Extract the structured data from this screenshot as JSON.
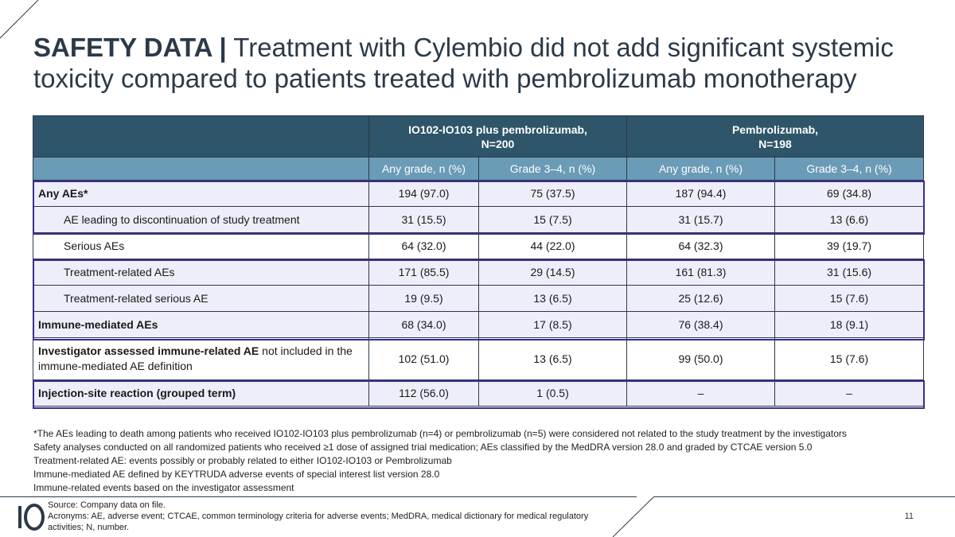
{
  "title": {
    "bold": "SAFETY DATA |",
    "rest": "Treatment with Cylembio did not add significant systemic toxicity compared to patients treated with pembrolizumab monotherapy"
  },
  "table": {
    "group_headers": [
      {
        "line1": "IO102-IO103 plus pembrolizumab,",
        "line2": "N=200"
      },
      {
        "line1": "Pembrolizumab,",
        "line2": "N=198"
      }
    ],
    "sub_headers": [
      "Any grade, n (%)",
      "Grade 3–4, n (%)",
      "Any grade, n (%)",
      "Grade 3–4, n (%)"
    ],
    "rows": [
      {
        "label": "Any AEs*",
        "values": [
          "194 (97.0)",
          "75 (37.5)",
          "187 (94.4)",
          "69 (34.8)"
        ]
      },
      {
        "label": "AE leading to discontinuation of study treatment",
        "values": [
          "31 (15.5)",
          "15 (7.5)",
          "31 (15.7)",
          "13 (6.6)"
        ]
      },
      {
        "label": "Serious AEs",
        "values": [
          "64 (32.0)",
          "44 (22.0)",
          "64 (32.3)",
          "39 (19.7)"
        ]
      },
      {
        "label": "Treatment-related AEs",
        "values": [
          "171 (85.5)",
          "29 (14.5)",
          "161 (81.3)",
          "31 (15.6)"
        ]
      },
      {
        "label": "Treatment-related serious AE",
        "values": [
          "19 (9.5)",
          "13 (6.5)",
          "25 (12.6)",
          "15 (7.6)"
        ]
      },
      {
        "label": "Immune-mediated AEs",
        "values": [
          "68 (34.0)",
          "17 (8.5)",
          "76 (38.4)",
          "18 (9.1)"
        ]
      },
      {
        "label_bold": "Investigator assessed immune-related AE",
        "label_rest": " not included in the immune-mediated AE definition",
        "values": [
          "102 (51.0)",
          "13 (6.5)",
          "99 (50.0)",
          "15 (7.6)"
        ]
      },
      {
        "label": "Injection-site reaction (grouped term)",
        "values": [
          "112 (56.0)",
          "1 (0.5)",
          "–",
          "–"
        ]
      }
    ]
  },
  "footnotes": [
    "*The AEs leading to death among patients who received IO102-IO103 plus pembrolizumab (n=4) or pembrolizumab (n=5) were considered not related to the study treatment by the investigators",
    "Safety analyses conducted on all randomized patients who received ≥1 dose of assigned trial medication; AEs classified by the MedDRA version 28.0 and graded by CTCAE version 5.0",
    "Treatment-related AE: events possibly or probably related to either IO102-IO103 or Pembrolizumab",
    "Immune-mediated AE defined by KEYTRUDA adverse events of special interest list version 28.0",
    "Immune-related events based on the investigator assessment"
  ],
  "source": {
    "line1": "Source: Company data on file.",
    "line2": "Acronyms: AE, adverse event; CTCAE, common terminology criteria for adverse events; MedDRA, medical dictionary for medical regulatory activities;  N, number."
  },
  "page_number": "11",
  "colors": {
    "header_dark": "#2e5569",
    "header_light": "#6a9bb7",
    "highlight_border": "#3a2d8f",
    "row_tint": "#eeeefa"
  }
}
